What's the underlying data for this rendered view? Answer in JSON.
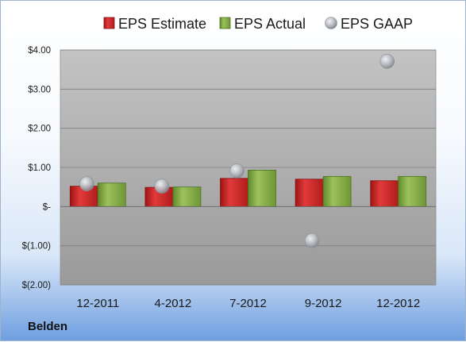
{
  "company": "Belden",
  "colors": {
    "estimate": "#d42a2a",
    "actual": "#86ad48",
    "gaap": "#b8bcc2"
  },
  "chart_data": {
    "type": "bar",
    "categories": [
      "12-2011",
      "4-2012",
      "7-2012",
      "9-2012",
      "12-2012"
    ],
    "series": [
      {
        "name": "EPS Estimate",
        "kind": "bar",
        "values": [
          0.52,
          0.49,
          0.72,
          0.7,
          0.66
        ]
      },
      {
        "name": "EPS Actual",
        "kind": "bar",
        "values": [
          0.6,
          0.5,
          0.93,
          0.77,
          0.77
        ]
      },
      {
        "name": "EPS GAAP",
        "kind": "scatter",
        "values": [
          0.58,
          0.52,
          0.91,
          -0.87,
          3.71
        ]
      }
    ],
    "ylim": [
      -2,
      4
    ],
    "yticks": [
      4,
      3,
      2,
      1,
      0,
      -1,
      -2
    ],
    "ytick_labels": [
      "$4.00",
      "$3.00",
      "$2.00",
      "$1.00",
      "$-",
      "$(1.00)",
      "$(2.00)"
    ],
    "grid": true,
    "legend": "top"
  }
}
